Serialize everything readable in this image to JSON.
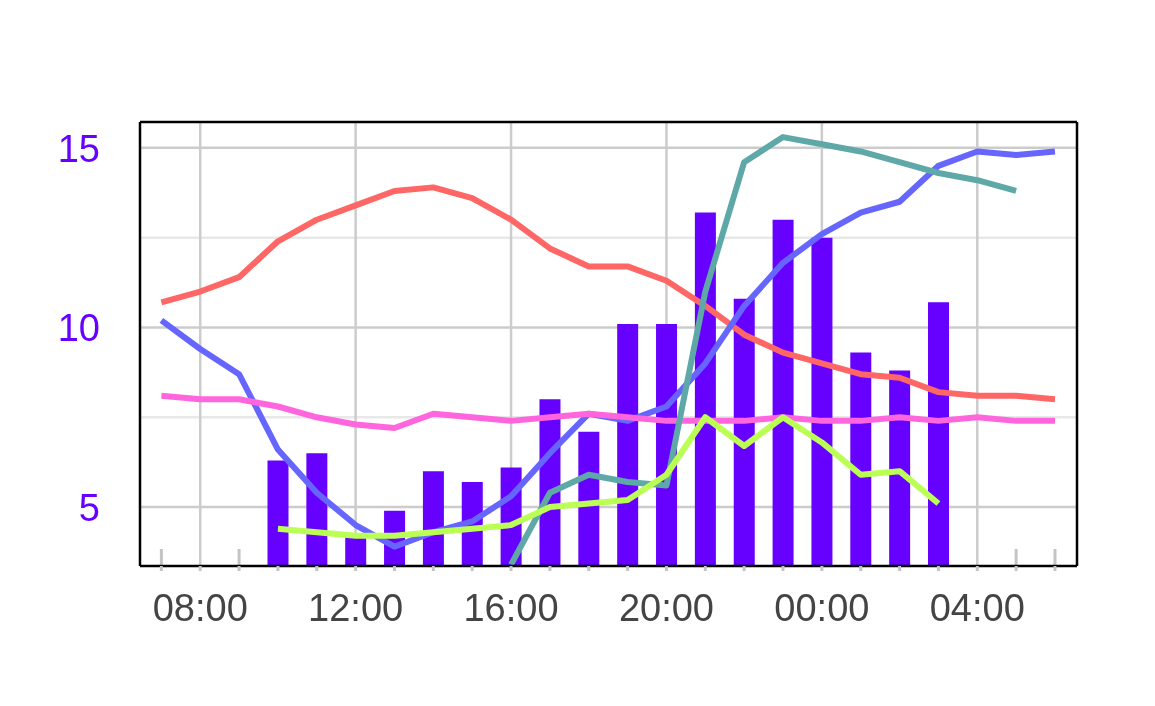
{
  "chart_data": {
    "type": "line",
    "x": [
      "2000-01-01T07:00",
      "2000-01-01T08:00",
      "2000-01-01T09:00",
      "2000-01-01T10:00",
      "2000-01-01T11:00",
      "2000-01-01T12:00",
      "2000-01-01T13:00",
      "2000-01-01T14:00",
      "2000-01-01T15:00",
      "2000-01-01T16:00",
      "2000-01-01T17:00",
      "2000-01-01T18:00",
      "2000-01-01T19:00",
      "2000-01-01T20:00",
      "2000-01-01T21:00",
      "2000-01-01T22:00",
      "2000-01-01T23:00",
      "2000-01-02T00:00",
      "2000-01-02T01:00",
      "2000-01-02T02:00",
      "2000-01-02T03:00",
      "2000-01-02T04:00",
      "2000-01-02T05:00",
      "2000-01-02T06:00"
    ],
    "xlim": [
      "2000-01-01T06:27",
      "2000-01-02T06:34"
    ],
    "xticks": [
      {
        "value": "2000-01-01T07:00",
        "label": null
      },
      {
        "value": "2000-01-01T08:00",
        "label": "08:00"
      },
      {
        "value": "2000-01-01T09:00",
        "label": null
      },
      {
        "value": "2000-01-01T10:00",
        "label": null
      },
      {
        "value": "2000-01-01T11:00",
        "label": null
      },
      {
        "value": "2000-01-01T12:00",
        "label": "12:00"
      },
      {
        "value": "2000-01-01T13:00",
        "label": null
      },
      {
        "value": "2000-01-01T14:00",
        "label": null
      },
      {
        "value": "2000-01-01T15:00",
        "label": null
      },
      {
        "value": "2000-01-01T16:00",
        "label": "16:00"
      },
      {
        "value": "2000-01-01T17:00",
        "label": null
      },
      {
        "value": "2000-01-01T18:00",
        "label": null
      },
      {
        "value": "2000-01-01T19:00",
        "label": null
      },
      {
        "value": "2000-01-01T20:00",
        "label": "20:00"
      },
      {
        "value": "2000-01-01T21:00",
        "label": null
      },
      {
        "value": "2000-01-01T22:00",
        "label": null
      },
      {
        "value": "2000-01-01T23:00",
        "label": null
      },
      {
        "value": "2000-01-02T00:00",
        "label": "00:00"
      },
      {
        "value": "2000-01-02T01:00",
        "label": null
      },
      {
        "value": "2000-01-02T02:00",
        "label": null
      },
      {
        "value": "2000-01-02T03:00",
        "label": null
      },
      {
        "value": "2000-01-02T04:00",
        "label": "04:00"
      },
      {
        "value": "2000-01-02T05:00",
        "label": null
      },
      {
        "value": "2000-01-02T06:00",
        "label": null
      }
    ],
    "ylim": [
      3.36,
      15.72
    ],
    "yticks": [
      5,
      {
        "value": 7.5,
        "label": null
      },
      10,
      {
        "value": 12.5,
        "label": null
      },
      15
    ],
    "grid": true,
    "line_style": "solid",
    "series": [
      {
        "type": "bar",
        "color": "#6600ff",
        "values": [
          null,
          null,
          null,
          6.3,
          6.5,
          4.2,
          4.9,
          6.0,
          5.7,
          6.1,
          8.0,
          7.1,
          10.1,
          10.1,
          13.2,
          10.8,
          13.0,
          12.5,
          9.3,
          8.8,
          10.7,
          null,
          null,
          null
        ]
      },
      {
        "color": "#ff6666",
        "values": [
          10.7,
          11.0,
          11.4,
          12.4,
          13.0,
          13.4,
          13.8,
          13.9,
          13.6,
          13.0,
          12.2,
          11.7,
          11.7,
          11.3,
          10.6,
          9.8,
          9.3,
          9.0,
          8.7,
          8.6,
          8.2,
          8.1,
          8.1,
          8.0
        ]
      },
      {
        "color": "#6666ff",
        "values": [
          10.2,
          9.4,
          8.7,
          6.6,
          5.4,
          4.5,
          3.9,
          4.3,
          4.6,
          5.3,
          6.5,
          7.6,
          7.4,
          7.8,
          9.0,
          10.6,
          11.8,
          12.6,
          13.2,
          13.5,
          14.5,
          14.9,
          14.8,
          14.9
        ]
      },
      {
        "color": "#ff66dd",
        "values": [
          8.1,
          8.0,
          8.0,
          7.8,
          7.5,
          7.3,
          7.2,
          7.6,
          7.5,
          7.4,
          7.5,
          7.6,
          7.5,
          7.4,
          7.4,
          7.4,
          7.5,
          7.4,
          7.4,
          7.5,
          7.4,
          7.5,
          7.4,
          7.4
        ]
      },
      {
        "color": "#5fa8a8",
        "values": [
          null,
          null,
          null,
          null,
          null,
          null,
          null,
          null,
          null,
          3.4,
          5.4,
          5.9,
          5.7,
          5.6,
          11.0,
          14.6,
          15.3,
          15.1,
          14.9,
          14.6,
          14.3,
          14.1,
          13.8,
          null
        ]
      },
      {
        "color": "#bbff55",
        "values": [
          null,
          null,
          null,
          4.4,
          4.3,
          4.2,
          4.2,
          4.3,
          4.4,
          4.5,
          5.0,
          5.1,
          5.2,
          5.9,
          7.5,
          6.7,
          7.5,
          6.8,
          5.9,
          6.0,
          5.1,
          null,
          null,
          null
        ]
      }
    ]
  }
}
